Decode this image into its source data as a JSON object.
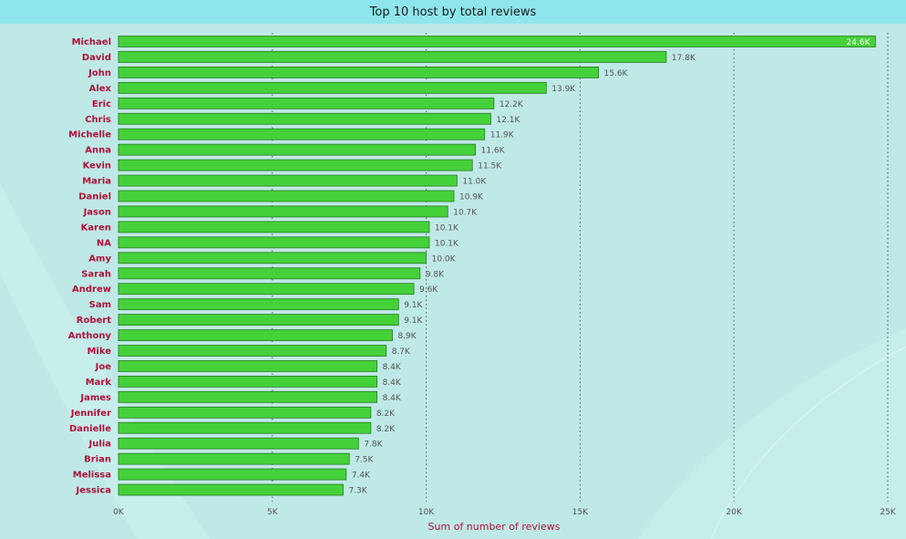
{
  "chart_data": {
    "type": "bar",
    "orientation": "horizontal",
    "title": "Top 10 host by total reviews",
    "xlabel": "Sum of number of reviews",
    "ylabel": "",
    "xlim": [
      0,
      25000
    ],
    "grid": true,
    "colors": {
      "bar": "#45d13a",
      "bar_border": "#2a7a22",
      "category_text": "#b0103a",
      "title_bg": "#8ee6ec",
      "background": "#bfe9e6"
    },
    "ticks": [
      {
        "value": 0,
        "label": "0K"
      },
      {
        "value": 5000,
        "label": "5K"
      },
      {
        "value": 10000,
        "label": "10K"
      },
      {
        "value": 15000,
        "label": "15K"
      },
      {
        "value": 20000,
        "label": "20K"
      },
      {
        "value": 25000,
        "label": "25K"
      }
    ],
    "categories": [
      "Michael",
      "David",
      "John",
      "Alex",
      "Eric",
      "Chris",
      "Michelle",
      "Anna",
      "Kevin",
      "Maria",
      "Daniel",
      "Jason",
      "Karen",
      "NA",
      "Amy",
      "Sarah",
      "Andrew",
      "Sam",
      "Robert",
      "Anthony",
      "Mike",
      "Joe",
      "Mark",
      "James",
      "Jennifer",
      "Danielle",
      "Julia",
      "Brian",
      "Melissa",
      "Jessica"
    ],
    "values": [
      24600,
      17800,
      15600,
      13900,
      12200,
      12100,
      11900,
      11600,
      11500,
      11000,
      10900,
      10700,
      10100,
      10100,
      10000,
      9800,
      9600,
      9100,
      9100,
      8900,
      8700,
      8400,
      8400,
      8400,
      8200,
      8200,
      7800,
      7500,
      7400,
      7300
    ],
    "value_labels": [
      "24.6K",
      "17.8K",
      "15.6K",
      "13.9K",
      "12.2K",
      "12.1K",
      "11.9K",
      "11.6K",
      "11.5K",
      "11.0K",
      "10.9K",
      "10.7K",
      "10.1K",
      "10.1K",
      "10.0K",
      "9.8K",
      "9.6K",
      "9.1K",
      "9.1K",
      "8.9K",
      "8.7K",
      "8.4K",
      "8.4K",
      "8.4K",
      "8.2K",
      "8.2K",
      "7.8K",
      "7.5K",
      "7.4K",
      "7.3K"
    ]
  }
}
